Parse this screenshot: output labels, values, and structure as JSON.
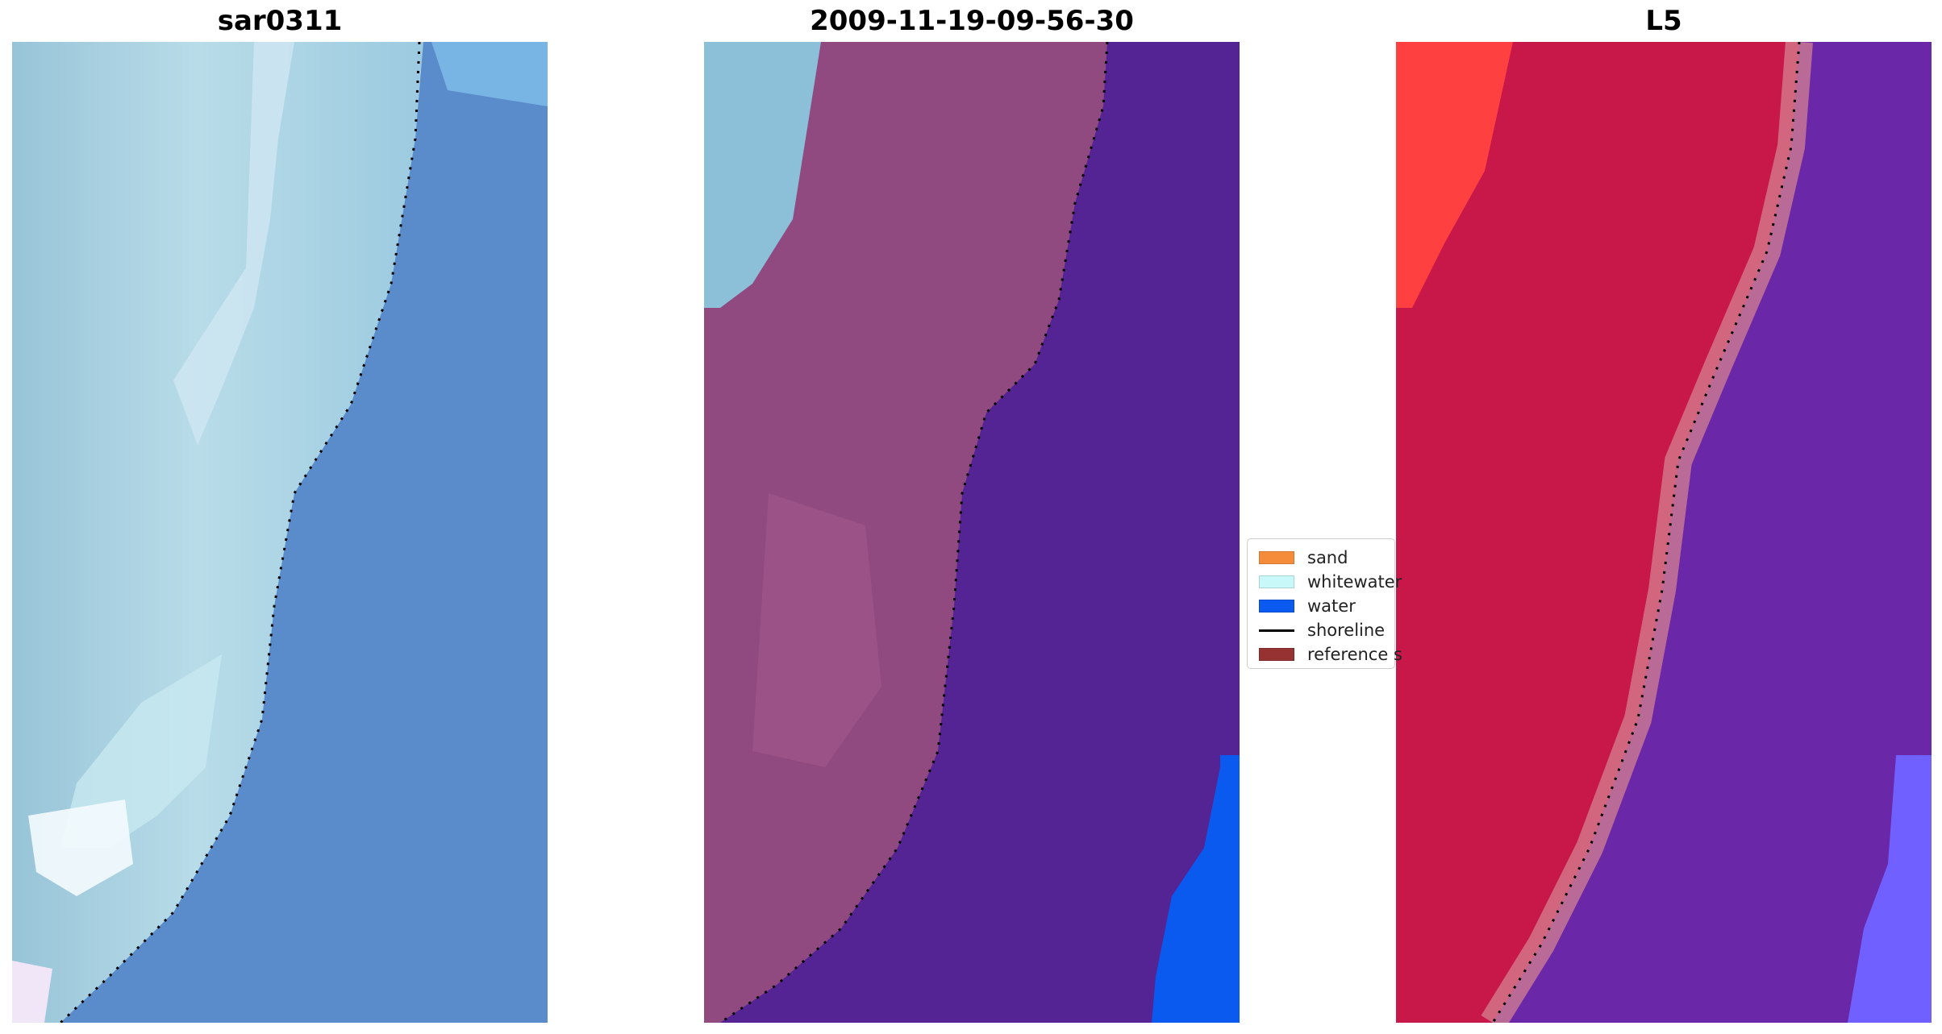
{
  "panels": [
    {
      "title": "sar0311",
      "palette": "rgb"
    },
    {
      "title": "2009-11-19-09-56-30",
      "palette": "classified"
    },
    {
      "title": "L5",
      "palette": "mndwi"
    }
  ],
  "legend": {
    "items": [
      {
        "label": "sand",
        "kind": "patch",
        "color": "#f58c3c"
      },
      {
        "label": "whitewater",
        "kind": "patch",
        "color": "#c8f8f8"
      },
      {
        "label": "water",
        "kind": "patch",
        "color": "#0a5af0"
      },
      {
        "label": "shoreline",
        "kind": "line",
        "color": "#000000"
      },
      {
        "label": "reference s",
        "kind": "patch",
        "color": "#963232"
      }
    ]
  },
  "colors": {
    "rgb_land": "#a8d4dc",
    "rgb_water": "#5a8ccc",
    "class_land": "#904a80",
    "class_whitewater": "#8cc0d8",
    "class_water": "#542494",
    "class_deepwater": "#0a5af0",
    "index_land": "#c8184a",
    "index_bright": "#ff4040",
    "index_water": "#6a28a8",
    "index_edge": "#7060ff"
  }
}
